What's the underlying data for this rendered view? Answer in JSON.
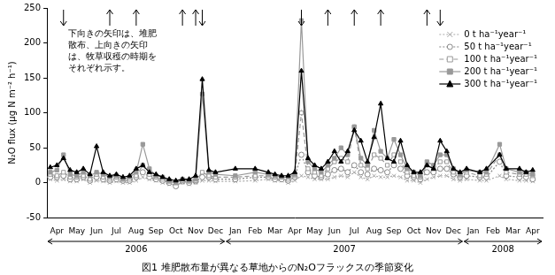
{
  "chart_data": {
    "type": "line",
    "title": "図1 堆肥散布量が異なる草地からのN₂Oフラックスの季節変化",
    "y_label": "N₂O flux (μg N m⁻² h⁻¹)",
    "annotations": [
      "下向きの矢印は、堆肥",
      "散布、上向きの矢印",
      "は、牧草収穫の時期を",
      "それぞれ示す。"
    ],
    "arrows": {
      "down": [
        2,
        23,
        38,
        59
      ],
      "up": [
        9,
        13,
        20,
        22,
        42,
        46,
        50,
        57
      ]
    },
    "x_groups": [
      {
        "label": "2006",
        "start": 0,
        "end": 26
      },
      {
        "label": "2007",
        "start": 27,
        "end": 62
      },
      {
        "label": "2008",
        "start": 63,
        "end": 74
      }
    ],
    "categories": [
      null,
      "Apr",
      null,
      null,
      "May",
      null,
      null,
      "Jun",
      null,
      null,
      "Jul",
      null,
      null,
      "Aug",
      null,
      null,
      "Sep",
      null,
      null,
      "Oct",
      null,
      null,
      "Nov",
      null,
      null,
      "Dec",
      null,
      null,
      "Jan",
      null,
      null,
      "Feb",
      null,
      null,
      "Mar",
      null,
      null,
      "Apr",
      null,
      null,
      "May",
      null,
      null,
      "Jun",
      null,
      null,
      "Jul",
      null,
      null,
      "Aug",
      null,
      null,
      "Sep",
      null,
      null,
      "Oct",
      null,
      null,
      "Nov",
      null,
      null,
      "Dec",
      null,
      null,
      "Jan",
      null,
      null,
      "Feb",
      null,
      null,
      "Mar",
      null,
      null,
      "Apr",
      null
    ],
    "series": [
      {
        "name": "0 t ha⁻¹year⁻¹",
        "color": "#aaaaaa",
        "marker": "x",
        "line_style": "dotted",
        "values": [
          5,
          3,
          5,
          2,
          2,
          5,
          0,
          3,
          2,
          0,
          2,
          0,
          0,
          3,
          8,
          5,
          3,
          0,
          -2,
          -3,
          0,
          -2,
          0,
          3,
          3,
          2,
          null,
          null,
          2,
          null,
          null,
          3,
          null,
          5,
          3,
          3,
          0,
          3,
          10,
          8,
          5,
          5,
          5,
          8,
          10,
          8,
          15,
          8,
          5,
          10,
          8,
          8,
          10,
          8,
          3,
          3,
          0,
          5,
          8,
          10,
          10,
          5,
          3,
          5,
          null,
          3,
          3,
          null,
          10,
          5,
          null,
          3,
          3,
          2,
          null
        ]
      },
      {
        "name": "50 t ha⁻¹year⁻¹",
        "color": "#888888",
        "marker": "open_circle",
        "line_style": "dotted",
        "values": [
          8,
          8,
          10,
          5,
          5,
          8,
          3,
          8,
          5,
          3,
          5,
          3,
          3,
          8,
          15,
          8,
          5,
          3,
          0,
          -5,
          2,
          0,
          2,
          8,
          8,
          5,
          null,
          null,
          5,
          null,
          null,
          8,
          null,
          8,
          5,
          5,
          3,
          8,
          40,
          15,
          10,
          8,
          12,
          18,
          20,
          15,
          25,
          15,
          12,
          20,
          18,
          15,
          25,
          20,
          10,
          8,
          5,
          15,
          15,
          20,
          20,
          12,
          8,
          10,
          null,
          8,
          8,
          null,
          30,
          10,
          null,
          8,
          8,
          5,
          null
        ]
      },
      {
        "name": "100 t ha⁻¹year⁻¹",
        "color": "#999999",
        "marker": "open_square",
        "line_style": "dashed",
        "values": [
          12,
          10,
          15,
          8,
          8,
          10,
          5,
          12,
          8,
          5,
          8,
          5,
          5,
          10,
          25,
          12,
          8,
          5,
          2,
          0,
          3,
          2,
          3,
          15,
          10,
          8,
          null,
          null,
          8,
          null,
          null,
          10,
          null,
          10,
          8,
          8,
          5,
          10,
          100,
          20,
          15,
          10,
          20,
          30,
          35,
          30,
          80,
          25,
          20,
          40,
          35,
          25,
          40,
          30,
          15,
          10,
          8,
          25,
          20,
          30,
          30,
          15,
          10,
          15,
          null,
          10,
          12,
          null,
          40,
          15,
          null,
          12,
          12,
          10,
          null
        ]
      },
      {
        "name": "200 t ha⁻¹year⁻¹",
        "color": "#999999",
        "marker": "square",
        "line_style": "solid",
        "values": [
          15,
          18,
          40,
          12,
          10,
          15,
          10,
          15,
          12,
          8,
          10,
          5,
          8,
          15,
          55,
          20,
          10,
          8,
          3,
          0,
          5,
          3,
          5,
          127,
          15,
          12,
          null,
          null,
          10,
          null,
          null,
          15,
          null,
          12,
          10,
          8,
          8,
          12,
          232,
          30,
          20,
          15,
          25,
          35,
          50,
          40,
          80,
          35,
          25,
          75,
          45,
          35,
          62,
          40,
          20,
          15,
          10,
          30,
          25,
          40,
          40,
          20,
          12,
          18,
          null,
          15,
          15,
          null,
          55,
          20,
          null,
          15,
          15,
          12,
          null
        ]
      },
      {
        "name": "300 t ha⁻¹year⁻¹",
        "color": "#000000",
        "marker": "triangle",
        "line_style": "solid",
        "values": [
          22,
          25,
          35,
          18,
          15,
          20,
          12,
          52,
          15,
          10,
          12,
          8,
          10,
          20,
          25,
          15,
          12,
          8,
          5,
          3,
          5,
          5,
          10,
          148,
          18,
          15,
          null,
          null,
          20,
          null,
          null,
          20,
          null,
          15,
          12,
          10,
          10,
          15,
          160,
          35,
          25,
          20,
          30,
          45,
          30,
          45,
          75,
          60,
          30,
          65,
          113,
          35,
          30,
          60,
          25,
          15,
          15,
          25,
          20,
          60,
          45,
          20,
          15,
          20,
          null,
          15,
          20,
          null,
          40,
          20,
          null,
          20,
          15,
          18,
          null
        ]
      }
    ],
    "ylim": [
      -50,
      250
    ],
    "yticks": [
      -50,
      0,
      50,
      100,
      150,
      200,
      250
    ],
    "grid": false,
    "legend": "upper right"
  }
}
